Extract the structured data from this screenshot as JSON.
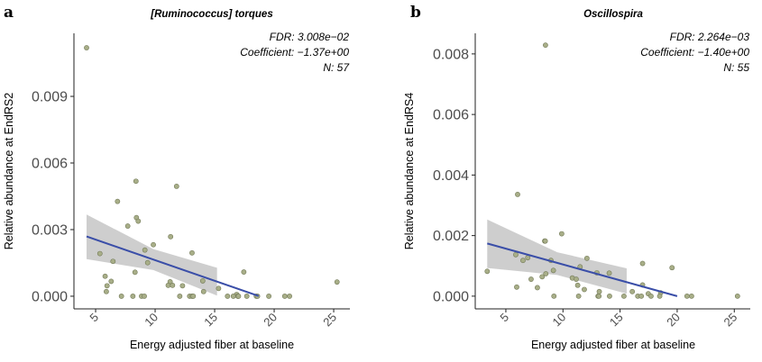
{
  "chart_data": [
    {
      "type": "scatter",
      "panel_label": "a",
      "title": "[Ruminococcus] torques",
      "xlabel": "Energy adjusted fiber at baseline",
      "ylabel": "Relative abundance at EndRS2",
      "annotations": [
        "FDR: 3.008e−02",
        "Coefficient: −1.37e+00",
        "N: 57"
      ],
      "xlim": [
        3.18,
        26.36
      ],
      "ylim": [
        -0.00057,
        0.01184
      ],
      "xticks": [
        5,
        10,
        15,
        20,
        25
      ],
      "yticks": [
        0.0,
        0.003,
        0.006,
        0.009
      ],
      "ytick_labels": [
        "0.000",
        "0.003",
        "0.006",
        "0.009"
      ],
      "grid": false,
      "points": [
        [
          4.24,
          0.01119
        ],
        [
          8.39,
          0.00518
        ],
        [
          11.8,
          0.00495
        ],
        [
          6.84,
          0.00427
        ],
        [
          8.43,
          0.00354
        ],
        [
          8.58,
          0.00338
        ],
        [
          7.7,
          0.00316
        ],
        [
          11.3,
          0.00268
        ],
        [
          9.85,
          0.00232
        ],
        [
          9.14,
          0.00208
        ],
        [
          5.36,
          0.00192
        ],
        [
          13.1,
          0.00195
        ],
        [
          6.46,
          0.00157
        ],
        [
          9.37,
          0.00151
        ],
        [
          8.31,
          0.00108
        ],
        [
          17.45,
          0.00109
        ],
        [
          5.8,
          0.0009
        ],
        [
          6.31,
          0.00067
        ],
        [
          14.0,
          0.00069
        ],
        [
          25.28,
          0.00064
        ],
        [
          11.26,
          0.00065
        ],
        [
          5.96,
          0.00047
        ],
        [
          11.1,
          0.00049
        ],
        [
          11.46,
          0.00049
        ],
        [
          12.3,
          0.00047
        ],
        [
          15.33,
          0.00035
        ],
        [
          5.9,
          0.00021
        ],
        [
          14.07,
          0.00021
        ],
        [
          16.85,
          8e-05
        ],
        [
          7.17,
          0
        ],
        [
          8.13,
          0
        ],
        [
          8.86,
          0
        ],
        [
          9.09,
          0
        ],
        [
          12.07,
          0
        ],
        [
          12.9,
          0
        ],
        [
          13.1,
          0
        ],
        [
          13.2,
          0
        ],
        [
          16.08,
          0
        ],
        [
          16.57,
          0
        ],
        [
          16.95,
          0
        ],
        [
          17.0,
          0
        ],
        [
          17.7,
          0
        ],
        [
          18.5,
          0
        ],
        [
          18.6,
          0
        ],
        [
          19.55,
          0
        ],
        [
          20.89,
          0
        ],
        [
          21.29,
          0
        ]
      ],
      "fit_line": [
        [
          4.24,
          0.00269
        ],
        [
          18.69,
          1e-05
        ]
      ],
      "ribbon": [
        {
          "x": 4.24,
          "lower": 0.00167,
          "upper": 0.00368
        },
        {
          "x": 9.85,
          "lower": 0.00118,
          "upper": 0.00212
        },
        {
          "x": 15.2,
          "lower": 3e-05,
          "upper": 0.00128
        }
      ],
      "colors": {
        "point_fill": "#a8ae88",
        "point_stroke": "#737a58",
        "line": "#3a4ea8",
        "ribbon": "#c9c9c9"
      }
    },
    {
      "type": "scatter",
      "panel_label": "b",
      "title": "Oscillospira",
      "xlabel": "Energy adjusted fiber at baseline",
      "ylabel": "Relative abundance at EndRS4",
      "annotations": [
        "FDR: 2.264e−03",
        "Coefficient: −1.40e+00",
        "N: 55"
      ],
      "xlim": [
        2.32,
        26.4
      ],
      "ylim": [
        -0.00042,
        0.00868
      ],
      "xticks": [
        5,
        10,
        15,
        20,
        25
      ],
      "yticks": [
        0.0,
        0.002,
        0.004,
        0.006,
        0.008
      ],
      "ytick_labels": [
        "0.000",
        "0.002",
        "0.004",
        "0.006",
        "0.008"
      ],
      "grid": false,
      "points": [
        [
          8.47,
          0.00829
        ],
        [
          3.37,
          0.00082
        ],
        [
          6.03,
          0.00336
        ],
        [
          9.89,
          0.00206
        ],
        [
          8.4,
          0.00182
        ],
        [
          8.45,
          0.00182
        ],
        [
          5.87,
          0.00137
        ],
        [
          6.5,
          0.00118
        ],
        [
          6.92,
          0.00127
        ],
        [
          8.95,
          0.00118
        ],
        [
          12.1,
          0.00125
        ],
        [
          11.5,
          0.00097
        ],
        [
          16.97,
          0.00108
        ],
        [
          19.55,
          0.00094
        ],
        [
          9.16,
          0.00085
        ],
        [
          8.5,
          0.00074
        ],
        [
          12.97,
          0.00077
        ],
        [
          14.05,
          0.00076
        ],
        [
          8.18,
          0.00064
        ],
        [
          7.21,
          0.00056
        ],
        [
          10.82,
          0.0006
        ],
        [
          11.16,
          0.00056
        ],
        [
          7.76,
          0.00028
        ],
        [
          5.95,
          0.0003
        ],
        [
          11.29,
          0.00036
        ],
        [
          16.97,
          0.00037
        ],
        [
          11.87,
          0.00022
        ],
        [
          13.18,
          0.00015
        ],
        [
          16.07,
          0.00015
        ],
        [
          17.47,
          8e-05
        ],
        [
          18.55,
          0.00011
        ],
        [
          9.21,
          0
        ],
        [
          11.37,
          0
        ],
        [
          13.07,
          0
        ],
        [
          13.15,
          0
        ],
        [
          14.08,
          0
        ],
        [
          15.34,
          0
        ],
        [
          16.55,
          0
        ],
        [
          16.86,
          0
        ],
        [
          17.71,
          0
        ],
        [
          18.47,
          0
        ],
        [
          20.86,
          0
        ],
        [
          21.26,
          0
        ],
        [
          25.28,
          0
        ]
      ],
      "fit_line": [
        [
          3.37,
          0.00174
        ],
        [
          20.0,
          0.0
        ]
      ],
      "ribbon": [
        {
          "x": 3.37,
          "lower": 0.00093,
          "upper": 0.00253
        },
        {
          "x": 9.5,
          "lower": 0.0007,
          "upper": 0.00145
        },
        {
          "x": 15.58,
          "lower": 8e-05,
          "upper": 0.00092
        }
      ],
      "colors": {
        "point_fill": "#a8ae88",
        "point_stroke": "#737a58",
        "line": "#3a4ea8",
        "ribbon": "#c9c9c9"
      }
    }
  ]
}
